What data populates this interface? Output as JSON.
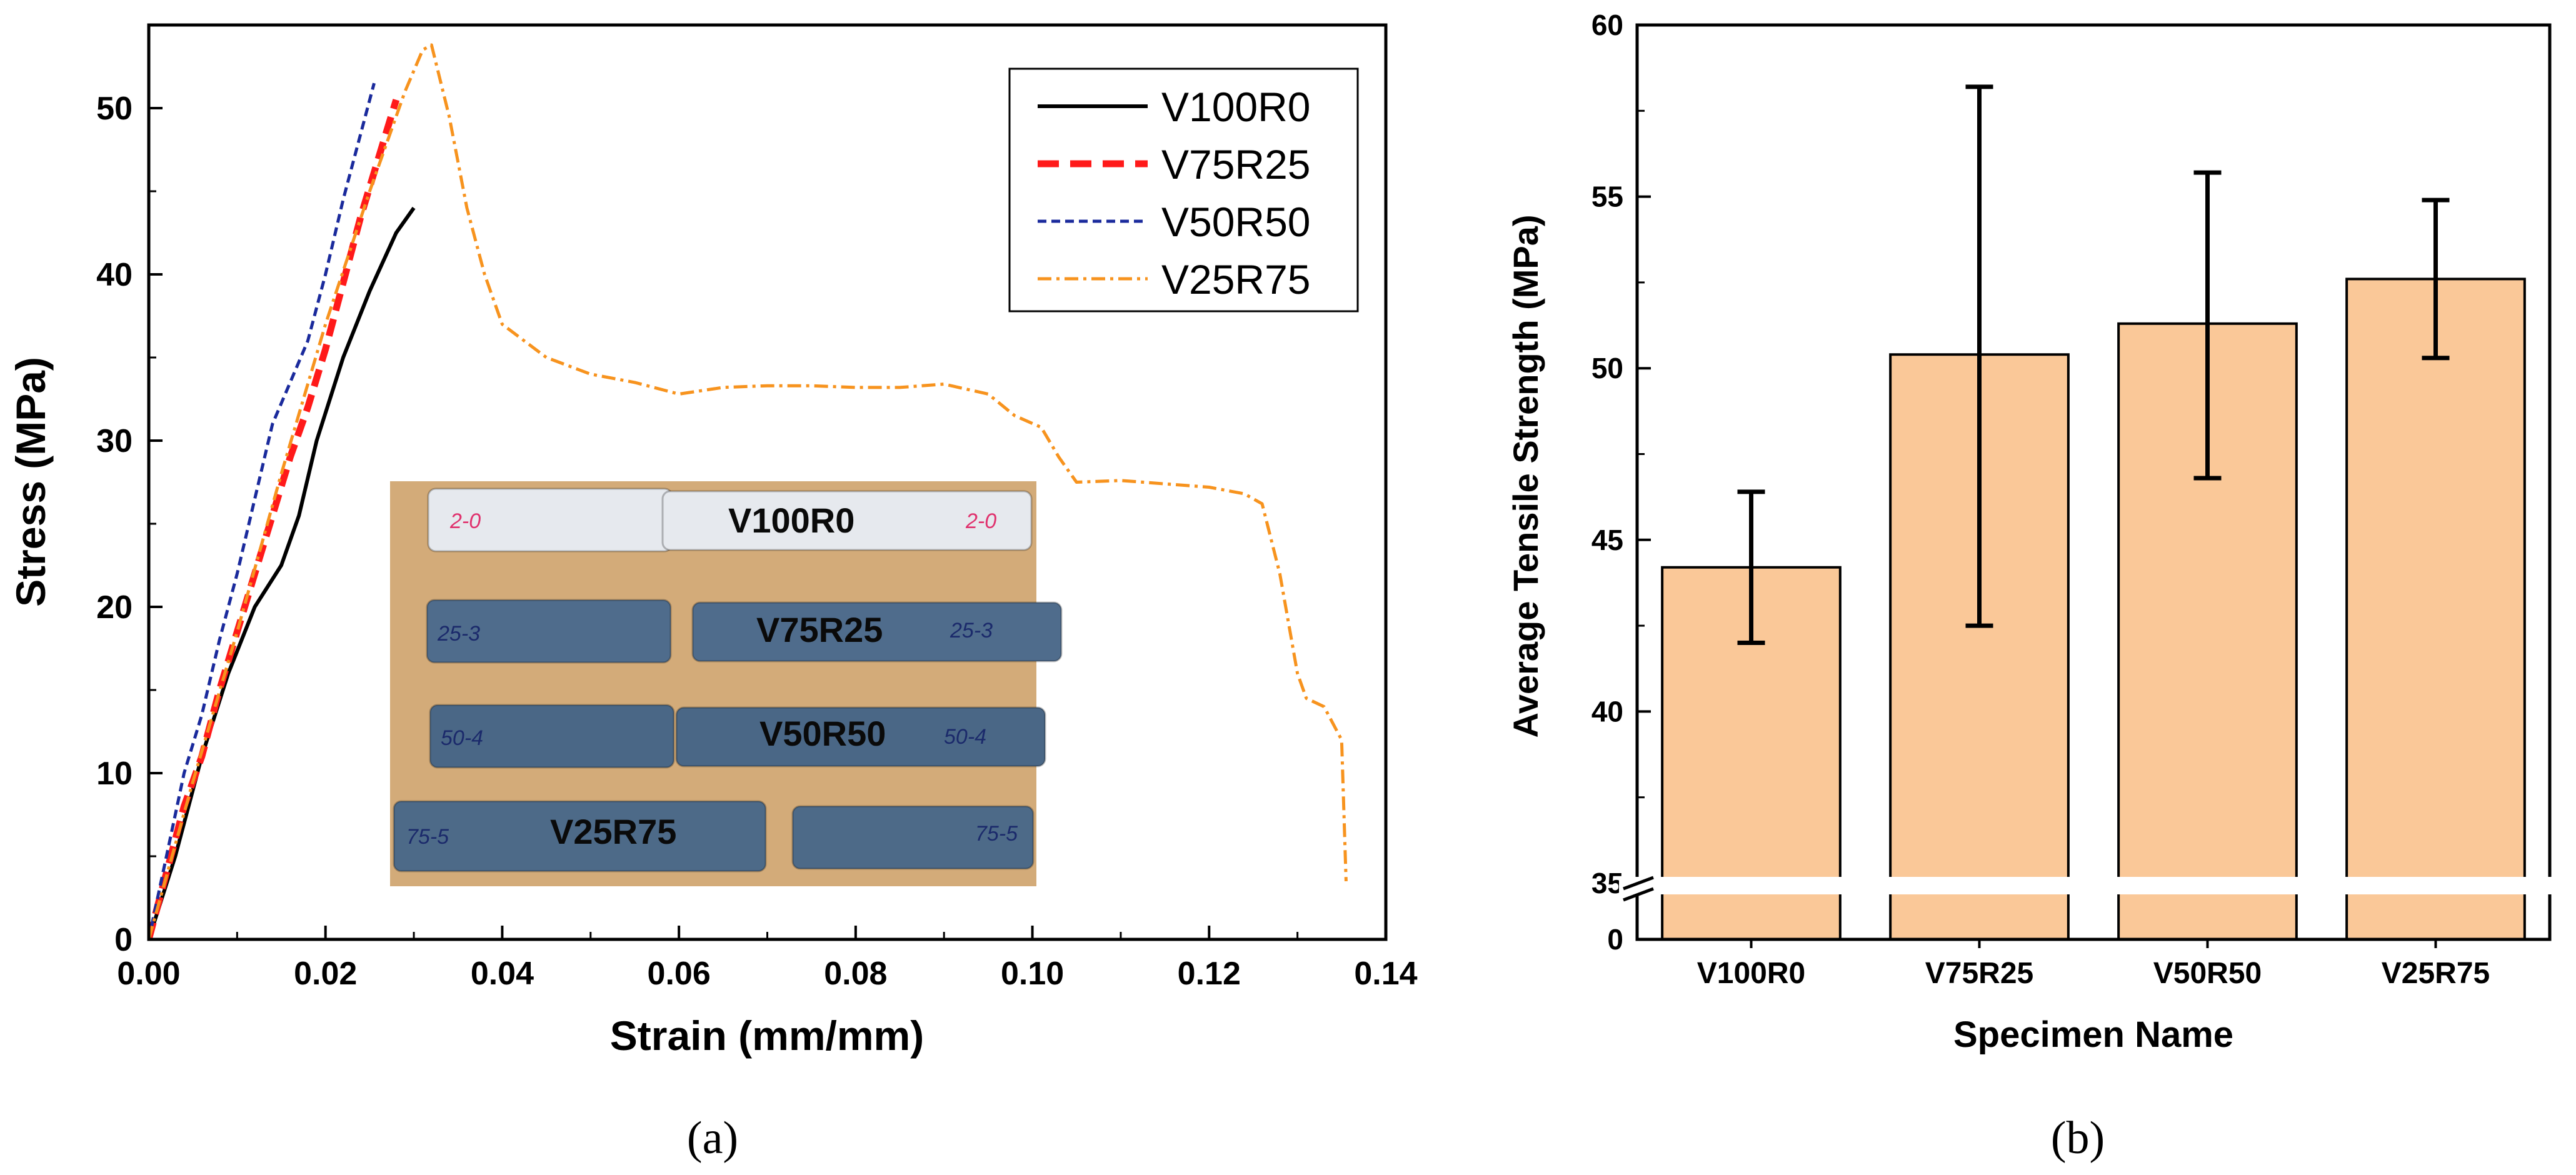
{
  "panel_labels": [
    "(a)",
    "(b)"
  ],
  "chart_data": [
    {
      "type": "line",
      "xlabel": "Strain (mm/mm)",
      "ylabel": "Stress (MPa)",
      "xlim": [
        0,
        0.14
      ],
      "ylim": [
        0,
        55
      ],
      "xticks": [
        "0.00",
        "0.02",
        "0.04",
        "0.06",
        "0.08",
        "0.10",
        "0.12",
        "0.14"
      ],
      "yticks": [
        "0",
        "10",
        "20",
        "30",
        "40",
        "50"
      ],
      "legend_position": "top-right",
      "grid": false,
      "series": [
        {
          "name": "V100R0",
          "color": "#000000",
          "style": "solid",
          "x": [
            0,
            0.003,
            0.006,
            0.009,
            0.012,
            0.015,
            0.017,
            0.019,
            0.022,
            0.025,
            0.028,
            0.03
          ],
          "y": [
            0,
            5,
            11,
            16,
            20,
            22.5,
            25.5,
            30,
            35,
            39,
            42.5,
            44
          ]
        },
        {
          "name": "V75R25",
          "color": "#ff1a1a",
          "style": "dashed",
          "x": [
            0,
            0.002,
            0.004,
            0.006,
            0.008,
            0.01,
            0.012,
            0.014,
            0.016,
            0.018,
            0.02,
            0.022,
            0.024,
            0.026,
            0.028
          ],
          "y": [
            0,
            4,
            8,
            11,
            15,
            18.5,
            22,
            25.5,
            29,
            32,
            35.5,
            39.5,
            43.5,
            47,
            50.5
          ]
        },
        {
          "name": "V50R50",
          "color": "#1a2a9c",
          "style": "dashed",
          "x": [
            0,
            0.002,
            0.004,
            0.006,
            0.008,
            0.01,
            0.012,
            0.014,
            0.016,
            0.018,
            0.02,
            0.022,
            0.024,
            0.0255
          ],
          "y": [
            0,
            5,
            10,
            13.5,
            18,
            22,
            26.5,
            31,
            33.5,
            36,
            40,
            44.5,
            48.5,
            51.5
          ]
        },
        {
          "name": "V25R75",
          "color": "#f7931e",
          "style": "dashdot",
          "x": [
            0,
            0.005,
            0.01,
            0.015,
            0.02,
            0.025,
            0.029,
            0.031,
            0.032,
            0.034,
            0.036,
            0.038,
            0.04,
            0.045,
            0.05,
            0.055,
            0.06,
            0.065,
            0.07,
            0.075,
            0.08,
            0.085,
            0.09,
            0.095,
            0.098,
            0.101,
            0.103,
            0.105,
            0.11,
            0.115,
            0.12,
            0.124,
            0.126,
            0.128,
            0.13,
            0.131,
            0.133,
            0.135,
            0.1355
          ],
          "y": [
            0,
            9.5,
            18.5,
            28,
            37,
            45,
            51,
            53.5,
            53.8,
            49.5,
            44,
            40,
            37,
            35,
            34,
            33.5,
            32.8,
            33.2,
            33.3,
            33.3,
            33.2,
            33.2,
            33.4,
            32.8,
            31.5,
            30.8,
            29,
            27.5,
            27.6,
            27.4,
            27.2,
            26.8,
            26.2,
            22,
            16,
            14.5,
            14,
            12,
            3.5
          ]
        }
      ]
    },
    {
      "type": "bar",
      "xlabel": "Specimen Name",
      "ylabel": "Average Tensile Strength (MPa)",
      "categories": [
        "V100R0",
        "V75R25",
        "V50R50",
        "V25R75"
      ],
      "values": [
        44.2,
        50.4,
        51.3,
        52.6
      ],
      "error": [
        [
          42.0,
          46.4
        ],
        [
          42.5,
          58.2
        ],
        [
          46.8,
          55.7
        ],
        [
          50.3,
          54.9
        ]
      ],
      "ylim": [
        35,
        60
      ],
      "yticks": [
        "0",
        "35",
        "40",
        "45",
        "50",
        "55",
        "60"
      ],
      "axis_break": true,
      "bar_color": "#fac898",
      "grid": false
    }
  ],
  "inset": {
    "background": "#d3ab79",
    "specimen_labels": [
      "V100R0",
      "V75R25",
      "V50R50",
      "V25R75"
    ],
    "specimen_colors": [
      "#e6e9ee",
      "#4f6c8c",
      "#4a6786",
      "#4d6a88"
    ],
    "handwritten_marks": [
      "2-0",
      "2-0",
      "25-3",
      "25-3",
      "50-4",
      "50-4",
      "75-5",
      "75-5"
    ]
  }
}
